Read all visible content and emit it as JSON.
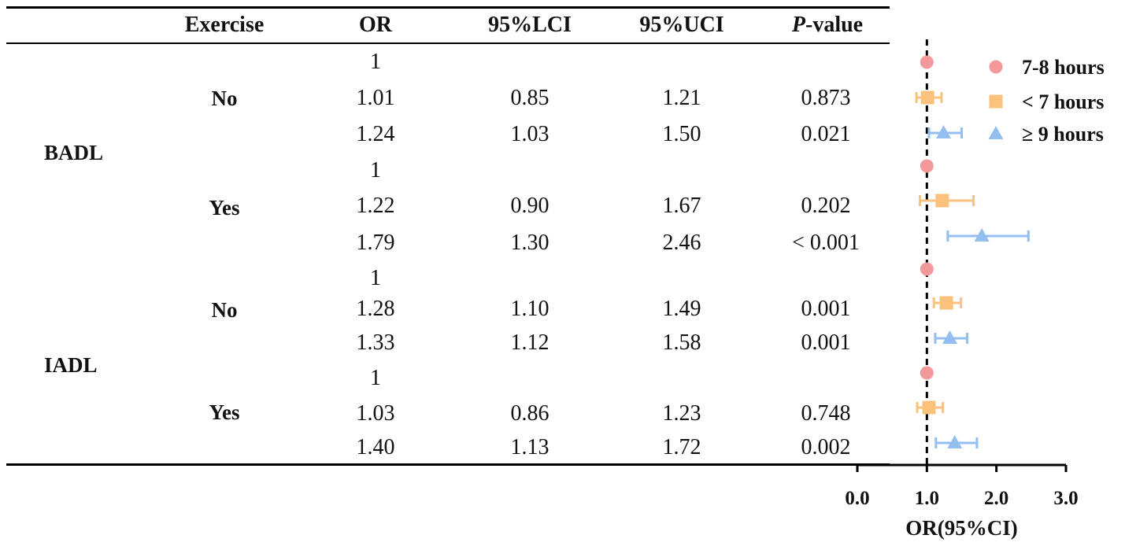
{
  "table": {
    "headers": {
      "exercise": "Exercise",
      "or": "OR",
      "lci": "95%LCI",
      "uci": "95%UCI",
      "p_italic": "P",
      "p_rest": "-value"
    },
    "groups": [
      {
        "name": "BADL",
        "blocks": [
          {
            "exercise": "No",
            "rows": [
              {
                "or": "1",
                "lci": "",
                "uci": "",
                "p": ""
              },
              {
                "or": "1.01",
                "lci": "0.85",
                "uci": "1.21",
                "p": "0.873"
              },
              {
                "or": "1.24",
                "lci": "1.03",
                "uci": "1.50",
                "p": "0.021"
              }
            ]
          },
          {
            "exercise": "Yes",
            "rows": [
              {
                "or": "1",
                "lci": "",
                "uci": "",
                "p": ""
              },
              {
                "or": "1.22",
                "lci": "0.90",
                "uci": "1.67",
                "p": "0.202"
              },
              {
                "or": "1.79",
                "lci": "1.30",
                "uci": "2.46",
                "p": "< 0.001"
              }
            ]
          }
        ]
      },
      {
        "name": "IADL",
        "blocks": [
          {
            "exercise": "No",
            "rows": [
              {
                "or": "1",
                "lci": "",
                "uci": "",
                "p": ""
              },
              {
                "or": "1.28",
                "lci": "1.10",
                "uci": "1.49",
                "p": "0.001"
              },
              {
                "or": "1.33",
                "lci": "1.12",
                "uci": "1.58",
                "p": "0.001"
              }
            ]
          },
          {
            "exercise": "Yes",
            "rows": [
              {
                "or": "1",
                "lci": "",
                "uci": "",
                "p": ""
              },
              {
                "or": "1.03",
                "lci": "0.86",
                "uci": "1.23",
                "p": "0.748"
              },
              {
                "or": "1.40",
                "lci": "1.13",
                "uci": "1.72",
                "p": "0.002"
              }
            ]
          }
        ]
      }
    ]
  },
  "chart_data": {
    "type": "scatter",
    "subtype": "forest-plot",
    "xlabel": "OR(95%CI)",
    "xlim": [
      0,
      3
    ],
    "xticks": [
      "0.0",
      "1.0",
      "2.0",
      "3.0"
    ],
    "reference_line": 1.0,
    "legend_position": "top-right",
    "series": [
      {
        "name": "7-8 hours",
        "marker": "circle",
        "color": "#f4999b",
        "points": [
          {
            "or": 1,
            "lci": null,
            "uci": null
          },
          {
            "or": 1,
            "lci": null,
            "uci": null
          },
          {
            "or": 1,
            "lci": null,
            "uci": null
          },
          {
            "or": 1,
            "lci": null,
            "uci": null
          }
        ]
      },
      {
        "name": "< 7 hours",
        "marker": "square",
        "color": "#fbc27e",
        "points": [
          {
            "or": 1.01,
            "lci": 0.85,
            "uci": 1.21
          },
          {
            "or": 1.22,
            "lci": 0.9,
            "uci": 1.67
          },
          {
            "or": 1.28,
            "lci": 1.1,
            "uci": 1.49
          },
          {
            "or": 1.03,
            "lci": 0.86,
            "uci": 1.23
          }
        ]
      },
      {
        "name": "≥ 9 hours",
        "marker": "triangle",
        "color": "#93bef0",
        "points": [
          {
            "or": 1.24,
            "lci": 1.03,
            "uci": 1.5
          },
          {
            "or": 1.79,
            "lci": 1.3,
            "uci": 2.46
          },
          {
            "or": 1.33,
            "lci": 1.12,
            "uci": 1.58
          },
          {
            "or": 1.4,
            "lci": 1.13,
            "uci": 1.72
          }
        ]
      }
    ]
  }
}
